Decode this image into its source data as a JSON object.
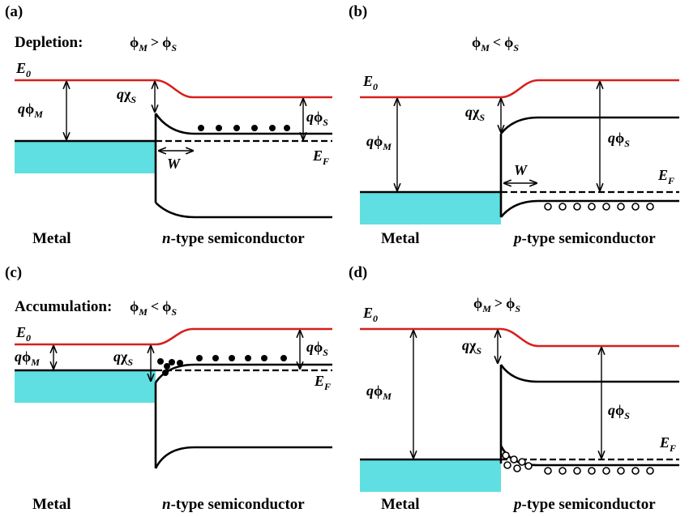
{
  "colors": {
    "vacuum_level": "#d6201e",
    "metal_fill": "#5fdfe1",
    "band": "#000000"
  },
  "panels": [
    {
      "label": "(a)",
      "condition": "Depletion:",
      "relation": ">",
      "left_caption": "Metal",
      "right_prefix": "n",
      "right_suffix": "-type semiconductor",
      "carrier": "electron"
    },
    {
      "label": "(b)",
      "condition": "",
      "relation": "<",
      "left_caption": "Metal",
      "right_prefix": "p",
      "right_suffix": "-type semiconductor",
      "carrier": "hole"
    },
    {
      "label": "(c)",
      "condition": "Accumulation:",
      "relation": "<",
      "left_caption": "Metal",
      "right_prefix": "n",
      "right_suffix": "-type semiconductor",
      "carrier": "electron"
    },
    {
      "label": "(d)",
      "condition": "",
      "relation": ">",
      "left_caption": "Metal",
      "right_prefix": "p",
      "right_suffix": "-type semiconductor",
      "carrier": "hole"
    }
  ],
  "symbols": {
    "phi": "ϕ",
    "chi": "χ",
    "q": "q",
    "E": "E",
    "sub_M": "M",
    "sub_S": "S",
    "sub_0": "0",
    "sub_F": "F",
    "W": "W"
  }
}
